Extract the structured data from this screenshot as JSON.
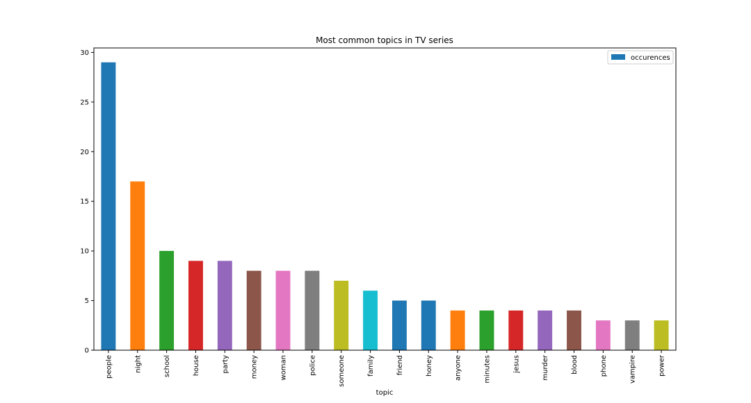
{
  "chart_data": {
    "type": "bar",
    "title": "Most common topics in TV series",
    "xlabel": "topic",
    "ylabel": "",
    "ylim": [
      0,
      30.45
    ],
    "yticks": [
      0,
      5,
      10,
      15,
      20,
      25,
      30
    ],
    "categories": [
      "people",
      "night",
      "school",
      "house",
      "party",
      "money",
      "woman",
      "police",
      "someone",
      "family",
      "friend",
      "honey",
      "anyone",
      "minutes",
      "jesus",
      "murder",
      "blood",
      "phone",
      "vampire",
      "power"
    ],
    "series": [
      {
        "name": "occurences",
        "values": [
          29,
          17,
          10,
          9,
          9,
          8,
          8,
          8,
          7,
          6,
          5,
          5,
          4,
          4,
          4,
          4,
          4,
          3,
          3,
          3
        ]
      }
    ],
    "bar_colors": [
      "#1f77b4",
      "#ff7f0e",
      "#2ca02c",
      "#d62728",
      "#9467bd",
      "#8c564b",
      "#e377c2",
      "#7f7f7f",
      "#bcbd22",
      "#17becf",
      "#1f77b4",
      "#1f77b4",
      "#ff7f0e",
      "#2ca02c",
      "#d62728",
      "#9467bd",
      "#8c564b",
      "#e377c2",
      "#7f7f7f",
      "#bcbd22"
    ],
    "legend": {
      "position": "top-right",
      "color": "#1f77b4"
    },
    "grid": false
  }
}
